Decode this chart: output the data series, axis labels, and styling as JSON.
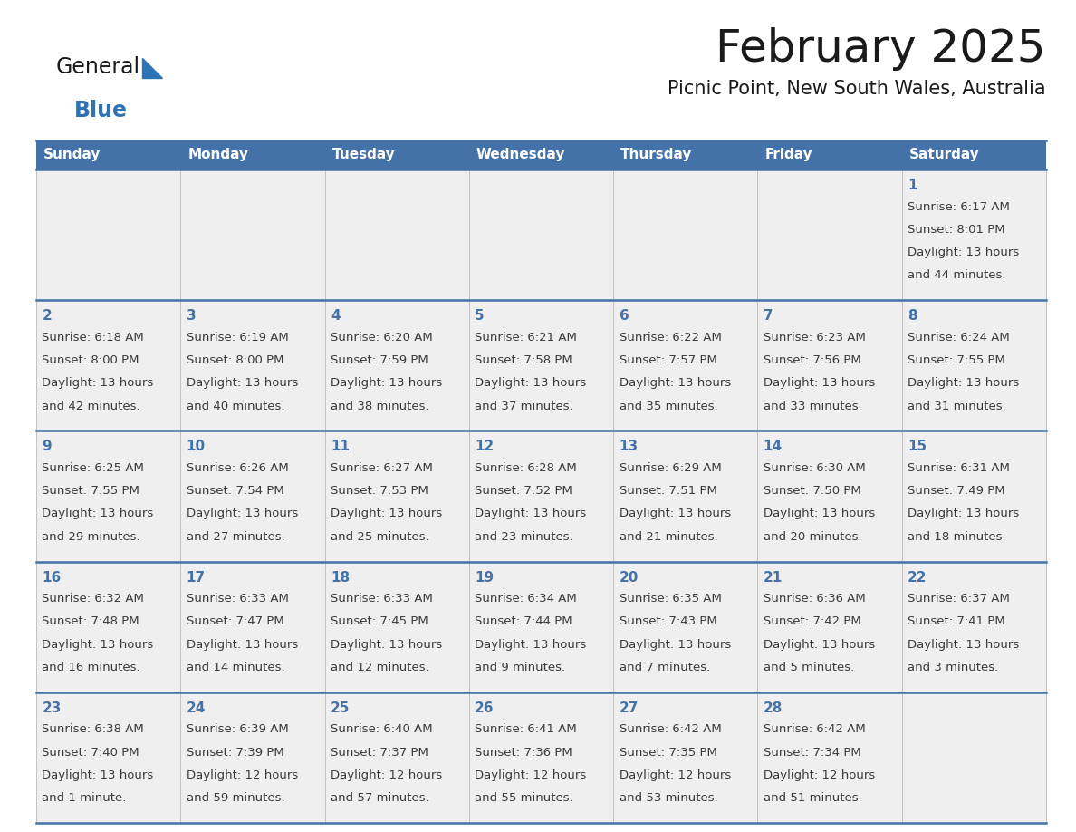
{
  "title": "February 2025",
  "subtitle": "Picnic Point, New South Wales, Australia",
  "days_of_week": [
    "Sunday",
    "Monday",
    "Tuesday",
    "Wednesday",
    "Thursday",
    "Friday",
    "Saturday"
  ],
  "header_bg": "#4472A8",
  "header_text": "#FFFFFF",
  "cell_bg_light": "#EFEFEF",
  "cell_bg_white": "#FFFFFF",
  "day_num_color": "#4472A8",
  "info_text_color": "#3a3a3a",
  "border_color": "#4472A8",
  "title_color": "#1a1a1a",
  "subtitle_color": "#1a1a1a",
  "logo_general_color": "#1a1a1a",
  "logo_blue_color": "#2E74B5",
  "logo_triangle_color": "#2E74B5",
  "calendar_data": [
    [
      null,
      null,
      null,
      null,
      null,
      null,
      {
        "day": 1,
        "sunrise": "6:17 AM",
        "sunset": "8:01 PM",
        "daylight": "13 hours and 44 minutes."
      }
    ],
    [
      {
        "day": 2,
        "sunrise": "6:18 AM",
        "sunset": "8:00 PM",
        "daylight": "13 hours and 42 minutes."
      },
      {
        "day": 3,
        "sunrise": "6:19 AM",
        "sunset": "8:00 PM",
        "daylight": "13 hours and 40 minutes."
      },
      {
        "day": 4,
        "sunrise": "6:20 AM",
        "sunset": "7:59 PM",
        "daylight": "13 hours and 38 minutes."
      },
      {
        "day": 5,
        "sunrise": "6:21 AM",
        "sunset": "7:58 PM",
        "daylight": "13 hours and 37 minutes."
      },
      {
        "day": 6,
        "sunrise": "6:22 AM",
        "sunset": "7:57 PM",
        "daylight": "13 hours and 35 minutes."
      },
      {
        "day": 7,
        "sunrise": "6:23 AM",
        "sunset": "7:56 PM",
        "daylight": "13 hours and 33 minutes."
      },
      {
        "day": 8,
        "sunrise": "6:24 AM",
        "sunset": "7:55 PM",
        "daylight": "13 hours and 31 minutes."
      }
    ],
    [
      {
        "day": 9,
        "sunrise": "6:25 AM",
        "sunset": "7:55 PM",
        "daylight": "13 hours and 29 minutes."
      },
      {
        "day": 10,
        "sunrise": "6:26 AM",
        "sunset": "7:54 PM",
        "daylight": "13 hours and 27 minutes."
      },
      {
        "day": 11,
        "sunrise": "6:27 AM",
        "sunset": "7:53 PM",
        "daylight": "13 hours and 25 minutes."
      },
      {
        "day": 12,
        "sunrise": "6:28 AM",
        "sunset": "7:52 PM",
        "daylight": "13 hours and 23 minutes."
      },
      {
        "day": 13,
        "sunrise": "6:29 AM",
        "sunset": "7:51 PM",
        "daylight": "13 hours and 21 minutes."
      },
      {
        "day": 14,
        "sunrise": "6:30 AM",
        "sunset": "7:50 PM",
        "daylight": "13 hours and 20 minutes."
      },
      {
        "day": 15,
        "sunrise": "6:31 AM",
        "sunset": "7:49 PM",
        "daylight": "13 hours and 18 minutes."
      }
    ],
    [
      {
        "day": 16,
        "sunrise": "6:32 AM",
        "sunset": "7:48 PM",
        "daylight": "13 hours and 16 minutes."
      },
      {
        "day": 17,
        "sunrise": "6:33 AM",
        "sunset": "7:47 PM",
        "daylight": "13 hours and 14 minutes."
      },
      {
        "day": 18,
        "sunrise": "6:33 AM",
        "sunset": "7:45 PM",
        "daylight": "13 hours and 12 minutes."
      },
      {
        "day": 19,
        "sunrise": "6:34 AM",
        "sunset": "7:44 PM",
        "daylight": "13 hours and 9 minutes."
      },
      {
        "day": 20,
        "sunrise": "6:35 AM",
        "sunset": "7:43 PM",
        "daylight": "13 hours and 7 minutes."
      },
      {
        "day": 21,
        "sunrise": "6:36 AM",
        "sunset": "7:42 PM",
        "daylight": "13 hours and 5 minutes."
      },
      {
        "day": 22,
        "sunrise": "6:37 AM",
        "sunset": "7:41 PM",
        "daylight": "13 hours and 3 minutes."
      }
    ],
    [
      {
        "day": 23,
        "sunrise": "6:38 AM",
        "sunset": "7:40 PM",
        "daylight": "13 hours and 1 minute."
      },
      {
        "day": 24,
        "sunrise": "6:39 AM",
        "sunset": "7:39 PM",
        "daylight": "12 hours and 59 minutes."
      },
      {
        "day": 25,
        "sunrise": "6:40 AM",
        "sunset": "7:37 PM",
        "daylight": "12 hours and 57 minutes."
      },
      {
        "day": 26,
        "sunrise": "6:41 AM",
        "sunset": "7:36 PM",
        "daylight": "12 hours and 55 minutes."
      },
      {
        "day": 27,
        "sunrise": "6:42 AM",
        "sunset": "7:35 PM",
        "daylight": "12 hours and 53 minutes."
      },
      {
        "day": 28,
        "sunrise": "6:42 AM",
        "sunset": "7:34 PM",
        "daylight": "12 hours and 51 minutes."
      },
      null
    ]
  ]
}
